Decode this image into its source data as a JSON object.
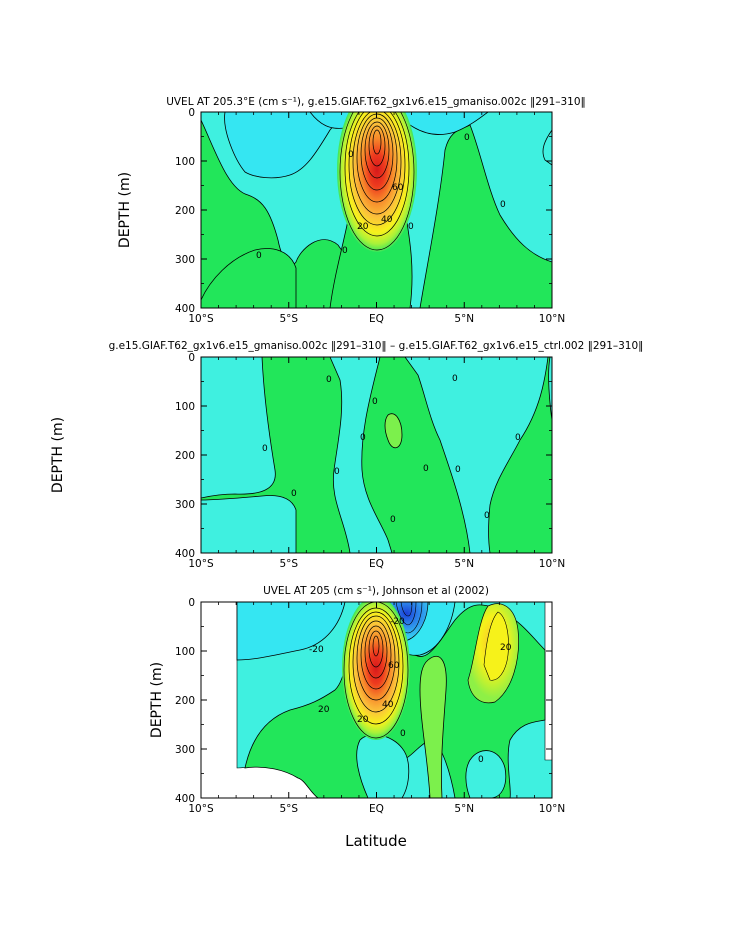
{
  "figure": {
    "xlabel_bottom": "Latitude",
    "colors": {
      "cyan_neg": "#3ff0e0",
      "sky": "#35e6f2",
      "green_pos": "#22e65a",
      "lime": "#7cf04c",
      "yellow": "#f6f61a",
      "orange": "#f79a28",
      "red": "#e4261e",
      "blue": "#1a5ce8"
    }
  },
  "chart_data": [
    {
      "type": "contour",
      "title": "UVEL AT 205.3°E (cm s⁻¹), g.e15.GIAF.T62_gx1v6.e15_gmaniso.002c ‖291–310‖",
      "ylabel": "DEPTH (m)",
      "xlabel": "",
      "xlim": [
        -10,
        10
      ],
      "ylim": [
        400,
        0
      ],
      "x_ticks": [
        "10°S",
        "5°S",
        "EQ",
        "5°N",
        "10°N"
      ],
      "y_ticks": [
        "0",
        "100",
        "200",
        "300",
        "400"
      ],
      "contour_labels": [
        "0",
        "0",
        "0",
        "0",
        "0",
        "0",
        "20",
        "40",
        "60"
      ],
      "core": {
        "x": 0.0,
        "y": 130,
        "value_max": 100
      }
    },
    {
      "type": "contour",
      "title": "g.e15.GIAF.T62_gx1v6.e15_gmaniso.002c ‖291–310‖ – g.e15.GIAF.T62_gx1v6.e15_ctrl.002 ‖291–310‖",
      "ylabel": "DEPTH (m)",
      "xlabel": "",
      "xlim": [
        -10,
        10
      ],
      "ylim": [
        400,
        0
      ],
      "x_ticks": [
        "10°S",
        "5°S",
        "EQ",
        "5°N",
        "10°N"
      ],
      "y_ticks": [
        "0",
        "100",
        "200",
        "300",
        "400"
      ],
      "contour_labels": [
        "0",
        "0",
        "0",
        "0",
        "0",
        "0",
        "0",
        "0",
        "0",
        "0",
        "0",
        "0"
      ]
    },
    {
      "type": "contour",
      "title": "UVEL AT 205 (cm s⁻¹), Johnson et al (2002)",
      "ylabel": "DEPTH (m)",
      "xlabel": "Latitude",
      "xlim": [
        -10,
        10
      ],
      "ylim": [
        400,
        0
      ],
      "x_ticks": [
        "10°S",
        "5°S",
        "EQ",
        "5°N",
        "10°N"
      ],
      "y_ticks": [
        "0",
        "100",
        "200",
        "300",
        "400"
      ],
      "contour_labels": [
        "-20",
        "-20",
        "0",
        "20",
        "20",
        "40",
        "60",
        "0",
        "20"
      ],
      "core": {
        "x": 0.0,
        "y": 130,
        "value_max": 100
      }
    }
  ]
}
